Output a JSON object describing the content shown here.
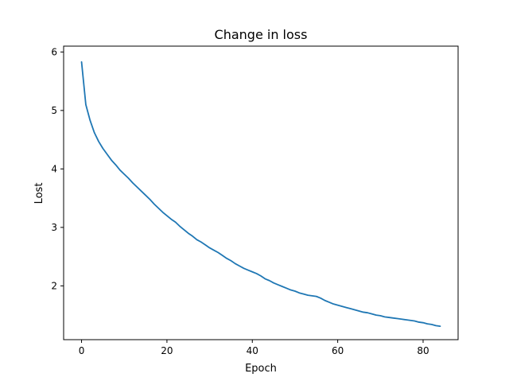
{
  "chart_data": {
    "type": "line",
    "title": "Change in loss",
    "xlabel": "Epoch",
    "ylabel": "Lost",
    "xlim": [
      -4.2,
      88.2
    ],
    "ylim": [
      1.08,
      6.1
    ],
    "xticks": [
      0,
      20,
      40,
      60,
      80
    ],
    "yticks": [
      2,
      3,
      4,
      5,
      6
    ],
    "grid": false,
    "legend": "none",
    "series": [
      {
        "color": "#1f77b4",
        "x": [
          0,
          1,
          2,
          3,
          4,
          5,
          6,
          7,
          8,
          9,
          10,
          11,
          12,
          13,
          14,
          15,
          16,
          17,
          18,
          19,
          20,
          21,
          22,
          23,
          24,
          25,
          26,
          27,
          28,
          29,
          30,
          31,
          32,
          33,
          34,
          35,
          36,
          37,
          38,
          39,
          40,
          41,
          42,
          43,
          44,
          45,
          46,
          47,
          48,
          49,
          50,
          51,
          52,
          53,
          54,
          55,
          56,
          57,
          58,
          59,
          60,
          61,
          62,
          63,
          64,
          65,
          66,
          67,
          68,
          69,
          70,
          71,
          72,
          73,
          74,
          75,
          76,
          77,
          78,
          79,
          80,
          81,
          82,
          83,
          84
        ],
        "y": [
          5.83,
          5.1,
          4.83,
          4.62,
          4.47,
          4.35,
          4.25,
          4.15,
          4.07,
          3.98,
          3.91,
          3.84,
          3.76,
          3.69,
          3.62,
          3.55,
          3.48,
          3.4,
          3.33,
          3.26,
          3.2,
          3.14,
          3.09,
          3.02,
          2.96,
          2.9,
          2.85,
          2.79,
          2.75,
          2.7,
          2.65,
          2.61,
          2.57,
          2.52,
          2.47,
          2.43,
          2.38,
          2.34,
          2.3,
          2.27,
          2.24,
          2.21,
          2.17,
          2.12,
          2.09,
          2.05,
          2.02,
          1.99,
          1.96,
          1.93,
          1.91,
          1.88,
          1.86,
          1.84,
          1.83,
          1.82,
          1.79,
          1.75,
          1.72,
          1.69,
          1.67,
          1.65,
          1.63,
          1.61,
          1.59,
          1.57,
          1.55,
          1.54,
          1.52,
          1.5,
          1.49,
          1.47,
          1.46,
          1.45,
          1.44,
          1.43,
          1.42,
          1.41,
          1.4,
          1.38,
          1.37,
          1.35,
          1.34,
          1.32,
          1.31
        ]
      }
    ]
  }
}
